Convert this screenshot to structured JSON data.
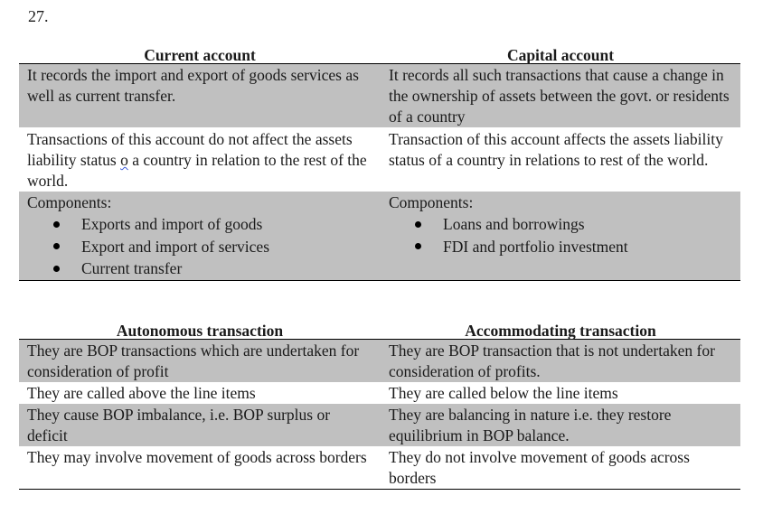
{
  "question_number": "27.",
  "table1": {
    "headers": [
      "Current account",
      "Capital account"
    ],
    "rows": [
      {
        "left": "It records the import and export of goods services as well as current transfer.",
        "right": "It records all such transactions that cause a change in the ownership of assets between the govt. or residents of a country"
      },
      {
        "left_pre": "Transactions of this account do not affect the assets liability status ",
        "left_mark": "o",
        "left_post": " a country in relation to the rest of the world.",
        "right": "Transaction of this account affects the assets liability status of a country in relations to rest of the world."
      },
      {
        "left_title": "Components:",
        "left_items": [
          "Exports and import of goods",
          "Export and import of services",
          "Current transfer"
        ],
        "right_title": "Components:",
        "right_items": [
          "Loans and borrowings",
          "FDI and portfolio investment"
        ]
      }
    ]
  },
  "table2": {
    "headers": [
      "Autonomous transaction",
      "Accommodating transaction"
    ],
    "rows": [
      {
        "left": "They are BOP transactions which are undertaken for consideration of profit",
        "right": "They are BOP transaction that is not undertaken for consideration of profits."
      },
      {
        "left": "They are called above the line items",
        "right": "They are called below the line items"
      },
      {
        "left": "They cause BOP imbalance, i.e. BOP surplus or deficit",
        "right": "They are balancing in nature i.e. they restore equilibrium in BOP balance."
      },
      {
        "left": "They may involve movement of goods across borders",
        "right": "They do not involve movement of goods across borders"
      }
    ]
  }
}
